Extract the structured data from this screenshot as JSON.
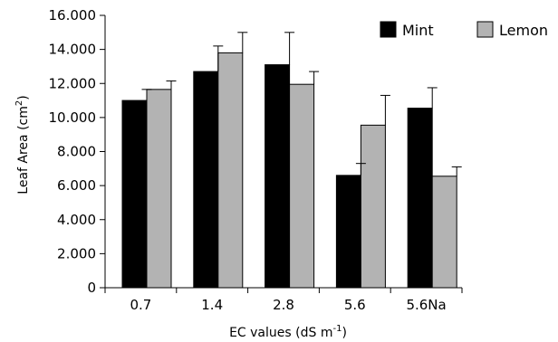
{
  "chart_data": {
    "type": "bar",
    "categories": [
      "0.7",
      "1.4",
      "2.8",
      "5.6",
      "5.6Na"
    ],
    "series": [
      {
        "name": "Mint",
        "color": "#000000",
        "values": [
          11.0,
          12.7,
          13.1,
          6.6,
          10.55
        ],
        "errors": [
          0.65,
          1.5,
          1.9,
          0.7,
          1.2
        ]
      },
      {
        "name": "Lemon",
        "color": "#b3b3b3",
        "values": [
          11.65,
          13.8,
          11.95,
          9.55,
          6.55
        ],
        "errors": [
          0.5,
          1.2,
          0.75,
          1.75,
          0.55
        ]
      }
    ],
    "y_ticks": [
      0,
      2,
      4,
      6,
      8,
      10,
      12,
      14,
      16
    ],
    "y_tick_labels": [
      "0",
      "2.000",
      "4.000",
      "6.000",
      "8.000",
      "10.000",
      "12.000",
      "14.000",
      "16.000"
    ],
    "ylim": [
      0,
      16
    ],
    "ylabel": {
      "text": "Leaf Area (cm",
      "sup": "2",
      "tail": ")"
    },
    "xlabel": {
      "text": "EC values (dS m",
      "sup": "-1",
      "tail": ")"
    },
    "legend_position": "top-right",
    "grid": false
  }
}
